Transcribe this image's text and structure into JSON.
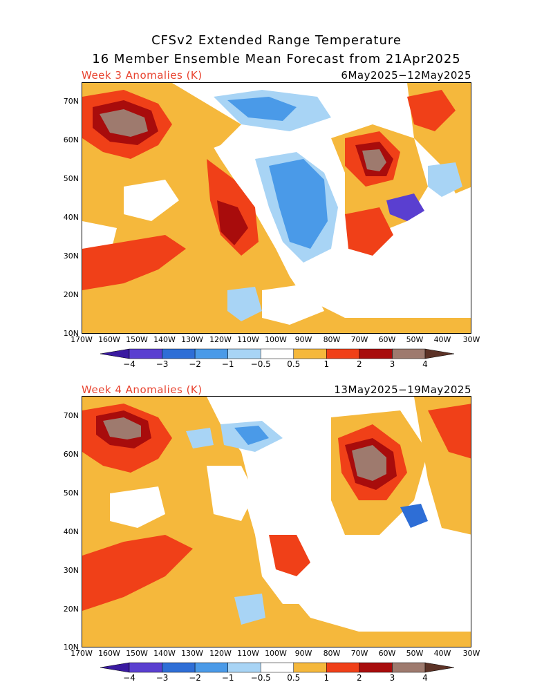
{
  "title_line1": "CFSv2 Extended Range Temperature",
  "title_line2": "16 Member Ensemble Mean Forecast from 21Apr2025",
  "panels": [
    {
      "label": "Week 3 Anomalies (K)",
      "date_range": "6May2025−12May2025"
    },
    {
      "label": "Week 4 Anomalies (K)",
      "date_range": "13May2025−19May2025"
    }
  ],
  "lat_labels": [
    "70N",
    "60N",
    "50N",
    "40N",
    "30N",
    "20N",
    "10N"
  ],
  "lon_labels": [
    "170W",
    "160W",
    "150W",
    "140W",
    "130W",
    "120W",
    "110W",
    "100W",
    "90W",
    "80W",
    "70W",
    "60W",
    "50W",
    "40W",
    "30W"
  ],
  "colorbar": {
    "labels": [
      "−4",
      "−3",
      "−2",
      "−1",
      "−0.5",
      "0.5",
      "1",
      "2",
      "3",
      "4"
    ],
    "colors": [
      "#3a1aa0",
      "#5a3fd0",
      "#2e6ed6",
      "#4a9ae8",
      "#a8d4f5",
      "#ffffff",
      "#f5b83c",
      "#f04018",
      "#a80c0c",
      "#9e7a6e",
      "#5c3226"
    ]
  },
  "map_extent": {
    "lon": [
      -170,
      -30
    ],
    "lat": [
      10,
      75
    ]
  }
}
